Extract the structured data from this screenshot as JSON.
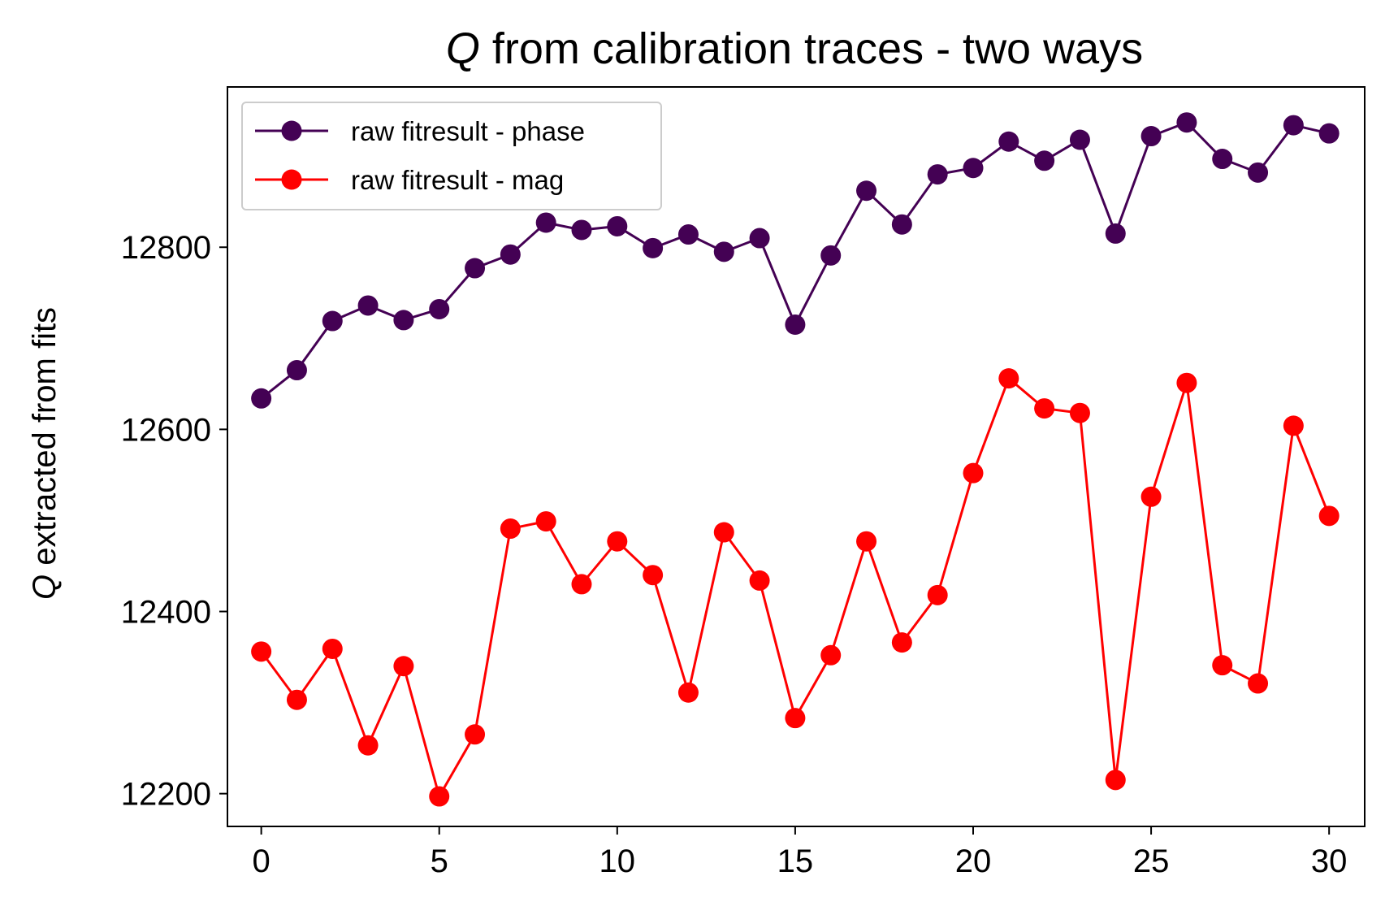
{
  "chart_data": {
    "type": "line",
    "title_prefix": "Q",
    "title_rest": " from calibration traces - two ways",
    "ylabel_prefix": "Q",
    "ylabel_rest": " extracted from fits",
    "xlabel": "",
    "xlim": [
      -0.95,
      31.0
    ],
    "ylim": [
      12164,
      12976
    ],
    "xticks": [
      0,
      5,
      10,
      15,
      20,
      25,
      30
    ],
    "yticks": [
      12200,
      12400,
      12600,
      12800
    ],
    "grid": false,
    "legend_position": "upper left",
    "x": [
      0,
      1,
      2,
      3,
      4,
      5,
      6,
      7,
      8,
      9,
      10,
      11,
      12,
      13,
      14,
      15,
      16,
      17,
      18,
      19,
      20,
      21,
      22,
      23,
      24,
      25,
      26,
      27,
      28,
      29,
      30
    ],
    "series": [
      {
        "name": "raw fitresult - phase",
        "color": "#440154",
        "marker": "circle",
        "values": [
          12634,
          12665,
          12719,
          12736,
          12720,
          12732,
          12777,
          12792,
          12827,
          12819,
          12823,
          12799,
          12814,
          12795,
          12810,
          12715,
          12791,
          12862,
          12825,
          12880,
          12887,
          12916,
          12895,
          12918,
          12815,
          12922,
          12937,
          12897,
          12882,
          12934,
          12925
        ]
      },
      {
        "name": "raw fitresult - mag",
        "color": "#ff0000",
        "marker": "circle",
        "values": [
          12356,
          12303,
          12359,
          12253,
          12340,
          12197,
          12265,
          12491,
          12499,
          12430,
          12477,
          12440,
          12311,
          12487,
          12434,
          12283,
          12352,
          12477,
          12366,
          12418,
          12552,
          12656,
          12623,
          12618,
          12215,
          12526,
          12651,
          12341,
          12321,
          12604,
          12505
        ]
      }
    ]
  }
}
